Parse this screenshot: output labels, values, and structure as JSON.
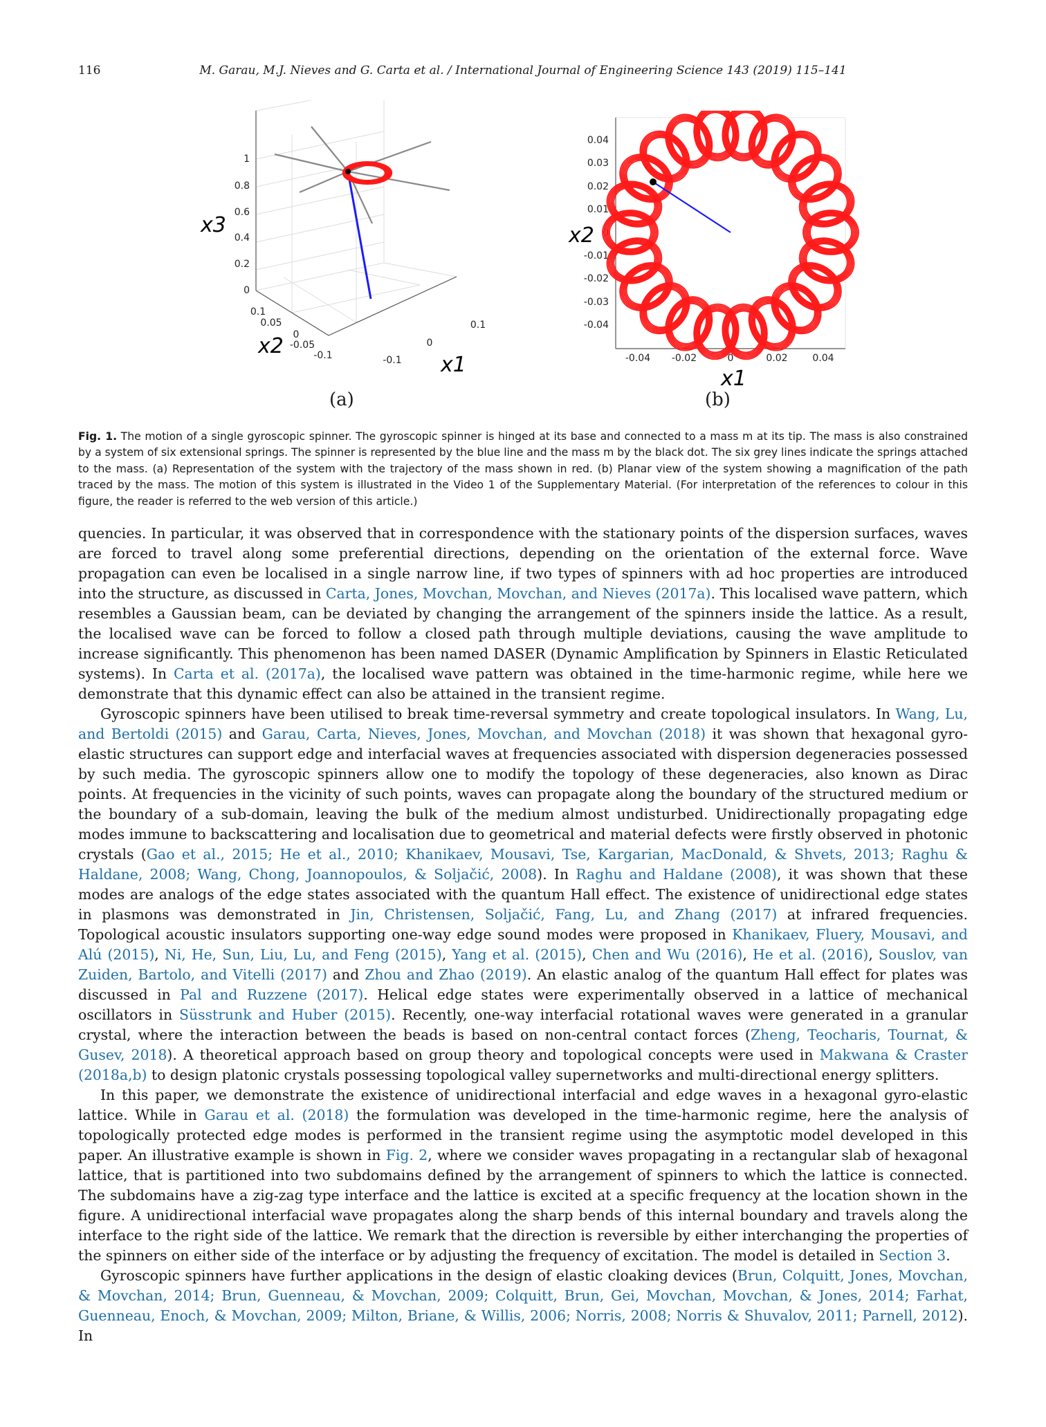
{
  "header": {
    "page_number": "116",
    "journal_line": "M. Garau, M.J. Nieves and G. Carta et al. / International Journal of Engineering Science 143 (2019) 115–141"
  },
  "figure": {
    "panel_a": {
      "label": "(a)",
      "x1_label": "x1",
      "x2_label": "x2",
      "x3_label": "x3",
      "x3_ticks": [
        "1",
        "0.8",
        "0.6",
        "0.4",
        "0.2",
        "0"
      ],
      "x2_ticks": [
        "0.1",
        "0.05",
        "0",
        "-0.05",
        "-0.1"
      ],
      "x1_ticks": [
        "-0.1",
        "0",
        "0.1"
      ]
    },
    "panel_b": {
      "label": "(b)",
      "x1_label": "x1",
      "x2_label": "x2",
      "y_ticks": [
        "0.04",
        "0.03",
        "0.02",
        "0.01",
        "0",
        "-0.01",
        "-0.02",
        "-0.03",
        "-0.04"
      ],
      "x_ticks": [
        "-0.04",
        "-0.02",
        "0",
        "0.02",
        "0.04"
      ]
    },
    "colors": {
      "trajectory": "#ff1a1a",
      "spinner": "#1a1aff",
      "springs": "#888888",
      "mass": "#000000"
    }
  },
  "caption": {
    "label": "Fig. 1.",
    "text": "The motion of a single gyroscopic spinner. The gyroscopic spinner is hinged at its base and connected to a mass m at its tip. The mass is also constrained by a system of six extensional springs. The spinner is represented by the blue line and the mass m by the black dot. The six grey lines indicate the springs attached to the mass. (a) Representation of the system with the trajectory of the mass shown in red. (b) Planar view of the system showing a magnification of the path traced by the mass. The motion of this system is illustrated in the Video 1 of the Supplementary Material. (For interpretation of the references to colour in this figure, the reader is referred to the web version of this article.)"
  },
  "paragraphs": [
    {
      "indent": false,
      "segments": [
        {
          "t": "quencies. In particular, it was observed that in correspondence with the stationary points of the dispersion surfaces, waves are forced to travel along some preferential directions, depending on the orientation of the external force. Wave propagation can even be localised in a single narrow line, if two types of spinners with ad hoc properties are introduced into the structure, as discussed in "
        },
        {
          "t": "Carta, Jones, Movchan, Movchan, and Nieves (2017a)",
          "c": true
        },
        {
          "t": ". This localised wave pattern, which resembles a Gaussian beam, can be deviated by changing the arrangement of the spinners inside the lattice. As a result, the localised wave can be forced to follow a closed path through multiple deviations, causing the wave amplitude to increase significantly. This phenomenon has been named DASER (Dynamic Amplification by Spinners in Elastic Reticulated systems). In "
        },
        {
          "t": "Carta et al. (2017a)",
          "c": true
        },
        {
          "t": ", the localised wave pattern was obtained in the time-harmonic regime, while here we demonstrate that this dynamic effect can also be attained in the transient regime."
        }
      ]
    },
    {
      "indent": true,
      "segments": [
        {
          "t": "Gyroscopic spinners have been utilised to break time-reversal symmetry and create topological insulators. In "
        },
        {
          "t": "Wang, Lu, and Bertoldi (2015)",
          "c": true
        },
        {
          "t": " and "
        },
        {
          "t": "Garau, Carta, Nieves, Jones, Movchan, and Movchan (2018)",
          "c": true
        },
        {
          "t": " it was shown that hexagonal gyro-elastic structures can support edge and interfacial waves at frequencies associated with dispersion degeneracies possessed by such media. The gyroscopic spinners allow one to modify the topology of these degeneracies, also known as Dirac points. At frequencies in the vicinity of such points, waves can propagate along the boundary of the structured medium or the boundary of a sub-domain, leaving the bulk of the medium almost undisturbed. Unidirectionally propagating edge modes immune to backscattering and localisation due to geometrical and material defects were firstly observed in photonic crystals ("
        },
        {
          "t": "Gao et al., 2015; He et al., 2010; Khanikaev, Mousavi, Tse, Kargarian, MacDonald, & Shvets, 2013; Raghu & Haldane, 2008; Wang, Chong, Joannopoulos, & Soljačić, 2008",
          "c": true
        },
        {
          "t": "). In "
        },
        {
          "t": "Raghu and Haldane (2008)",
          "c": true
        },
        {
          "t": ", it was shown that these modes are analogs of the edge states associated with the quantum Hall effect. The existence of unidirectional edge states in plasmons was demonstrated in "
        },
        {
          "t": "Jin, Christensen, Soljačić, Fang, Lu, and Zhang (2017)",
          "c": true
        },
        {
          "t": " at infrared frequencies. Topological acoustic insulators supporting one-way edge sound modes were proposed in "
        },
        {
          "t": "Khanikaev, Fluery, Mousavi, and Alú (2015)",
          "c": true
        },
        {
          "t": ", "
        },
        {
          "t": "Ni, He, Sun, Liu, Lu, and Feng (2015)",
          "c": true
        },
        {
          "t": ", "
        },
        {
          "t": "Yang et al. (2015)",
          "c": true
        },
        {
          "t": ", "
        },
        {
          "t": "Chen and Wu (2016)",
          "c": true
        },
        {
          "t": ", "
        },
        {
          "t": "He et al. (2016)",
          "c": true
        },
        {
          "t": ", "
        },
        {
          "t": "Souslov, van Zuiden, Bartolo, and Vitelli (2017)",
          "c": true
        },
        {
          "t": " and "
        },
        {
          "t": "Zhou and Zhao (2019)",
          "c": true
        },
        {
          "t": ". An elastic analog of the quantum Hall effect for plates was discussed in "
        },
        {
          "t": "Pal and Ruzzene (2017)",
          "c": true
        },
        {
          "t": ". Helical edge states were experimentally observed in a lattice of mechanical oscillators in "
        },
        {
          "t": "Süsstrunk and Huber (2015)",
          "c": true
        },
        {
          "t": ". Recently, one-way interfacial rotational waves were generated in a granular crystal, where the interaction between the beads is based on non-central contact forces ("
        },
        {
          "t": "Zheng, Teocharis, Tournat, & Gusev, 2018",
          "c": true
        },
        {
          "t": "). A theoretical approach based on group theory and topological concepts were used in "
        },
        {
          "t": "Makwana & Craster (2018a,b)",
          "c": true
        },
        {
          "t": " to design platonic crystals possessing topological valley supernetworks and multi-directional energy splitters."
        }
      ]
    },
    {
      "indent": true,
      "segments": [
        {
          "t": "In this paper, we demonstrate the existence of unidirectional interfacial and edge waves in a hexagonal gyro-elastic lattice. While in "
        },
        {
          "t": "Garau et al. (2018)",
          "c": true
        },
        {
          "t": " the formulation was developed in the time-harmonic regime, here the analysis of topologically protected edge modes is performed in the transient regime using the asymptotic model developed in this paper. An illustrative example is shown in "
        },
        {
          "t": "Fig. 2",
          "c": true
        },
        {
          "t": ", where we consider waves propagating in a rectangular slab of hexagonal lattice, that is partitioned into two subdomains defined by the arrangement of spinners to which the lattice is connected. The subdomains have a zig-zag type interface and the lattice is excited at a specific frequency at the location shown in the figure. A unidirectional interfacial wave propagates along the sharp bends of this internal boundary and travels along the interface to the right side of the lattice. We remark that the direction is reversible by either interchanging the properties of the spinners on either side of the interface or by adjusting the frequency of excitation. The model is detailed in "
        },
        {
          "t": "Section 3",
          "c": true
        },
        {
          "t": "."
        }
      ]
    },
    {
      "indent": true,
      "segments": [
        {
          "t": "Gyroscopic spinners have further applications in the design of elastic cloaking devices ("
        },
        {
          "t": "Brun, Colquitt, Jones, Movchan, & Movchan, 2014; Brun, Guenneau, & Movchan, 2009; Colquitt, Brun, Gei, Movchan, Movchan, & Jones, 2014; Farhat, Guenneau, Enoch, & Movchan, 2009; Milton, Briane, & Willis, 2006; Norris, 2008; Norris & Shuvalov, 2011; Parnell, 2012",
          "c": true
        },
        {
          "t": "). In"
        }
      ]
    }
  ]
}
